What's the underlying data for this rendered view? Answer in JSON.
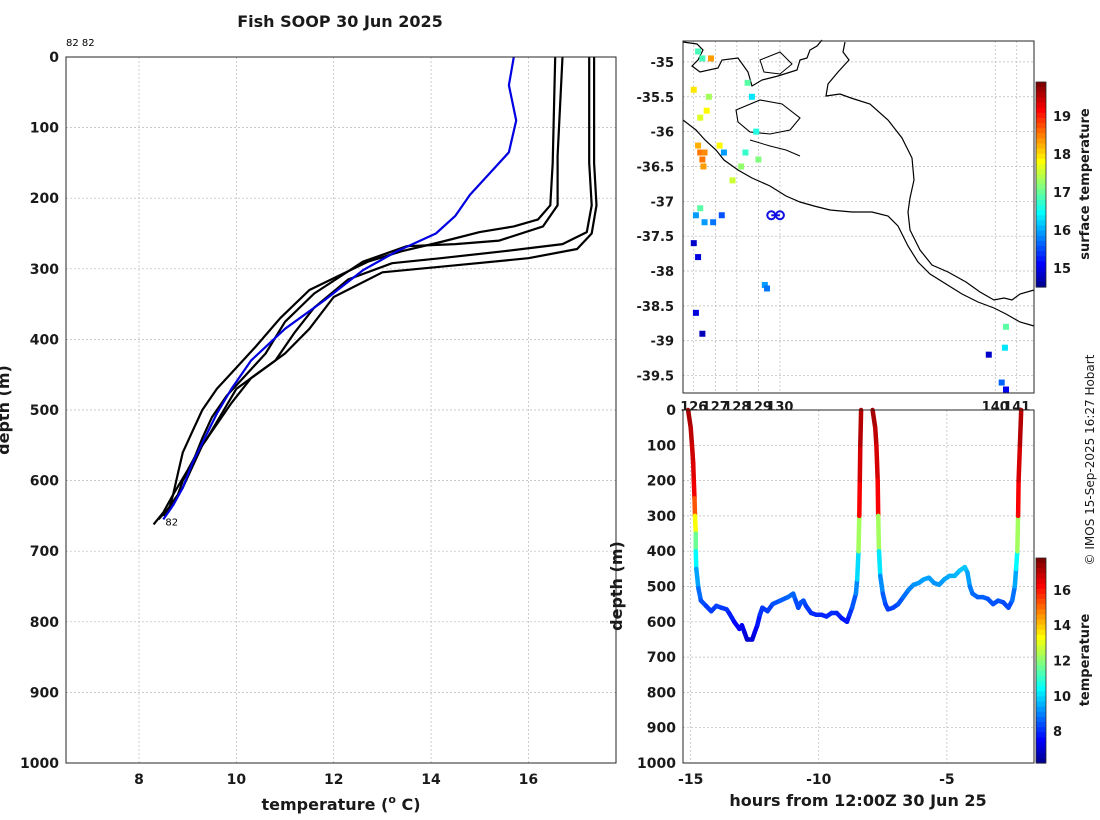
{
  "title": "Fish SOOP 30 Jun 2025",
  "copyright": "© IMOS 15-Sep-2025 16:27 Hobart",
  "chart_data": [
    {
      "type": "line",
      "name": "profile",
      "xlabel": "temperature (",
      "xlabel_sup": "o",
      "xlabel_end": " C)",
      "ylabel": "depth (m)",
      "xlim": [
        6.5,
        17.8
      ],
      "ylim": [
        0,
        1000
      ],
      "xticks": [
        8,
        10,
        12,
        14,
        16
      ],
      "yticks": [
        0,
        100,
        200,
        300,
        400,
        500,
        600,
        700,
        800,
        900,
        1000
      ],
      "top_labels": "82 82",
      "bottom_label": "82",
      "series": [
        {
          "name": "profile-1",
          "color": "#000000",
          "points": [
            [
              17.35,
              0
            ],
            [
              17.35,
              150
            ],
            [
              17.4,
              210
            ],
            [
              17.3,
              250
            ],
            [
              17.0,
              272
            ],
            [
              16.0,
              285
            ],
            [
              14.5,
              295
            ],
            [
              13.0,
              305
            ],
            [
              12.0,
              340
            ],
            [
              11.5,
              385
            ],
            [
              11.0,
              420
            ],
            [
              10.4,
              450
            ],
            [
              10.0,
              470
            ],
            [
              9.7,
              505
            ],
            [
              9.4,
              540
            ],
            [
              9.2,
              560
            ],
            [
              9.0,
              585
            ],
            [
              8.7,
              620
            ],
            [
              8.5,
              645
            ],
            [
              8.3,
              662
            ]
          ]
        },
        {
          "name": "profile-2",
          "color": "#000000",
          "points": [
            [
              17.25,
              0
            ],
            [
              17.25,
              150
            ],
            [
              17.3,
              210
            ],
            [
              17.2,
              248
            ],
            [
              16.7,
              265
            ],
            [
              15.5,
              275
            ],
            [
              14.2,
              285
            ],
            [
              13.2,
              292
            ],
            [
              12.3,
              315
            ],
            [
              11.6,
              355
            ],
            [
              11.2,
              390
            ],
            [
              10.8,
              430
            ],
            [
              10.3,
              455
            ],
            [
              9.9,
              490
            ],
            [
              9.6,
              520
            ],
            [
              9.3,
              550
            ],
            [
              9.1,
              580
            ],
            [
              8.9,
              610
            ],
            [
              8.6,
              640
            ],
            [
              8.4,
              655
            ]
          ]
        },
        {
          "name": "profile-3",
          "color": "#000000",
          "points": [
            [
              16.7,
              0
            ],
            [
              16.6,
              140
            ],
            [
              16.6,
              210
            ],
            [
              16.3,
              240
            ],
            [
              15.4,
              260
            ],
            [
              14.5,
              265
            ],
            [
              13.5,
              268
            ],
            [
              12.6,
              290
            ],
            [
              11.6,
              335
            ],
            [
              11.0,
              375
            ],
            [
              10.6,
              420
            ],
            [
              10.2,
              450
            ],
            [
              9.8,
              480
            ],
            [
              9.5,
              510
            ],
            [
              9.3,
              540
            ],
            [
              9.1,
              575
            ],
            [
              8.9,
              600
            ],
            [
              8.8,
              620
            ],
            [
              8.6,
              640
            ],
            [
              8.5,
              650
            ]
          ]
        },
        {
          "name": "profile-4",
          "color": "#000000",
          "points": [
            [
              16.55,
              0
            ],
            [
              16.5,
              150
            ],
            [
              16.45,
              210
            ],
            [
              16.2,
              230
            ],
            [
              15.7,
              240
            ],
            [
              15.0,
              248
            ],
            [
              14.2,
              262
            ],
            [
              13.4,
              275
            ],
            [
              12.7,
              290
            ],
            [
              11.5,
              330
            ],
            [
              10.9,
              370
            ],
            [
              10.4,
              410
            ],
            [
              10.0,
              440
            ],
            [
              9.6,
              470
            ],
            [
              9.3,
              500
            ],
            [
              9.1,
              530
            ],
            [
              8.9,
              560
            ],
            [
              8.8,
              590
            ],
            [
              8.7,
              620
            ],
            [
              8.6,
              645
            ]
          ]
        },
        {
          "name": "profile-5",
          "color": "#0000e0",
          "points": [
            [
              15.7,
              0
            ],
            [
              15.6,
              40
            ],
            [
              15.75,
              90
            ],
            [
              15.6,
              135
            ],
            [
              15.2,
              165
            ],
            [
              14.8,
              195
            ],
            [
              14.5,
              225
            ],
            [
              14.1,
              250
            ],
            [
              13.3,
              275
            ],
            [
              12.6,
              302
            ],
            [
              11.8,
              345
            ],
            [
              11.0,
              385
            ],
            [
              10.3,
              430
            ],
            [
              9.9,
              470
            ],
            [
              9.6,
              505
            ],
            [
              9.35,
              540
            ],
            [
              9.1,
              575
            ],
            [
              8.9,
              610
            ],
            [
              8.7,
              635
            ],
            [
              8.5,
              655
            ]
          ]
        }
      ]
    },
    {
      "type": "scatter",
      "name": "map",
      "xlim": [
        125.5,
        141.8
      ],
      "ylim": [
        -39.75,
        -34.7
      ],
      "xticks": [
        126,
        127,
        128,
        129,
        130,
        140,
        141
      ],
      "xtick_labels": [
        "126",
        "127",
        "128",
        "129",
        "130",
        "140",
        "141"
      ],
      "yticks": [
        -35,
        -35.5,
        -36,
        -36.5,
        -37,
        -37.5,
        -38,
        -38.5,
        -39,
        -39.5
      ],
      "colorbar": {
        "label": "surface temperature",
        "min": 14.5,
        "max": 19.9,
        "ticks": [
          15,
          16,
          17,
          18,
          19
        ]
      },
      "track": [
        [
          129.6,
          -37.2
        ],
        [
          130.0,
          -37.2
        ]
      ],
      "sst_points": [
        [
          126.3,
          -36.3,
          18.6
        ],
        [
          126.4,
          -36.4,
          18.6
        ],
        [
          126.5,
          -36.3,
          18.5
        ],
        [
          126.45,
          -36.5,
          18.4
        ],
        [
          126.2,
          -36.2,
          18.3
        ],
        [
          126.6,
          -35.7,
          17.9
        ],
        [
          126.3,
          -35.8,
          17.7
        ],
        [
          126.0,
          -35.4,
          18.0
        ],
        [
          126.7,
          -35.5,
          17.4
        ],
        [
          126.2,
          -34.85,
          16.9
        ],
        [
          126.4,
          -34.95,
          16.9
        ],
        [
          127.2,
          -36.2,
          17.9
        ],
        [
          127.8,
          -36.7,
          17.6
        ],
        [
          128.2,
          -36.5,
          17.3
        ],
        [
          128.4,
          -36.3,
          16.8
        ],
        [
          128.5,
          -35.3,
          17.0
        ],
        [
          128.7,
          -35.5,
          16.4
        ],
        [
          128.9,
          -36.0,
          16.7
        ],
        [
          129.0,
          -36.4,
          17.2
        ],
        [
          126.3,
          -37.1,
          17.0
        ],
        [
          126.1,
          -37.2,
          16.0
        ],
        [
          126.5,
          -37.3,
          16.0
        ],
        [
          126.9,
          -37.3,
          15.8
        ],
        [
          127.3,
          -37.2,
          15.6
        ],
        [
          126.0,
          -37.6,
          14.9
        ],
        [
          126.2,
          -37.8,
          15.0
        ],
        [
          129.3,
          -38.2,
          16.0
        ],
        [
          129.4,
          -38.25,
          15.8
        ],
        [
          140.5,
          -38.8,
          17.0
        ],
        [
          140.45,
          -39.1,
          16.4
        ],
        [
          140.3,
          -39.6,
          15.7
        ],
        [
          140.5,
          -39.7,
          15.1
        ],
        [
          126.1,
          -38.6,
          15.0
        ],
        [
          126.4,
          -38.9,
          14.8
        ],
        [
          139.7,
          -39.2,
          14.9
        ],
        [
          127.4,
          -36.3,
          16.0
        ],
        [
          126.8,
          -34.95,
          18.4
        ]
      ]
    },
    {
      "type": "line",
      "name": "section",
      "xlabel": "hours from 12:00Z 30 Jun 25",
      "ylabel": "depth (m)",
      "xlim": [
        -15.3,
        -1.6
      ],
      "ylim": [
        0,
        1000
      ],
      "xticks": [
        -15,
        -10,
        -5
      ],
      "yticks": [
        0,
        100,
        200,
        300,
        400,
        500,
        600,
        700,
        800,
        900,
        1000
      ],
      "colorbar": {
        "label": "temperature",
        "min": 6.2,
        "max": 17.8,
        "ticks": [
          8,
          10,
          12,
          14,
          16
        ]
      },
      "tracks": [
        [
          [
            -15.1,
            0
          ],
          [
            -15.0,
            50
          ],
          [
            -14.95,
            100
          ],
          [
            -14.9,
            150
          ],
          [
            -14.88,
            200
          ],
          [
            -14.85,
            250
          ],
          [
            -14.83,
            300
          ],
          [
            -14.8,
            350
          ],
          [
            -14.8,
            400
          ],
          [
            -14.78,
            450
          ],
          [
            -14.7,
            505
          ],
          [
            -14.6,
            540
          ],
          [
            -14.4,
            555
          ],
          [
            -14.2,
            570
          ],
          [
            -14.0,
            555
          ],
          [
            -13.8,
            560
          ],
          [
            -13.6,
            565
          ],
          [
            -13.5,
            575
          ],
          [
            -13.3,
            600
          ],
          [
            -13.1,
            620
          ],
          [
            -13.0,
            610
          ],
          [
            -12.9,
            630
          ],
          [
            -12.8,
            650
          ],
          [
            -12.6,
            650
          ],
          [
            -12.5,
            630
          ],
          [
            -12.4,
            610
          ],
          [
            -12.3,
            580
          ],
          [
            -12.2,
            560
          ],
          [
            -12.0,
            570
          ],
          [
            -11.8,
            550
          ],
          [
            -11.5,
            540
          ],
          [
            -11.2,
            530
          ],
          [
            -11.0,
            520
          ],
          [
            -10.9,
            540
          ],
          [
            -10.8,
            560
          ],
          [
            -10.7,
            545
          ],
          [
            -10.6,
            540
          ],
          [
            -10.5,
            555
          ],
          [
            -10.3,
            575
          ],
          [
            -10.1,
            580
          ],
          [
            -9.9,
            580
          ],
          [
            -9.7,
            585
          ],
          [
            -9.5,
            575
          ],
          [
            -9.3,
            575
          ],
          [
            -9.1,
            590
          ],
          [
            -8.9,
            600
          ],
          [
            -8.8,
            580
          ],
          [
            -8.7,
            560
          ],
          [
            -8.55,
            520
          ],
          [
            -8.5,
            480
          ],
          [
            -8.45,
            400
          ],
          [
            -8.42,
            300
          ],
          [
            -8.4,
            200
          ],
          [
            -8.38,
            100
          ],
          [
            -8.35,
            0
          ]
        ],
        [
          [
            -7.9,
            0
          ],
          [
            -7.8,
            50
          ],
          [
            -7.75,
            100
          ],
          [
            -7.7,
            200
          ],
          [
            -7.68,
            300
          ],
          [
            -7.65,
            400
          ],
          [
            -7.6,
            470
          ],
          [
            -7.5,
            520
          ],
          [
            -7.4,
            550
          ],
          [
            -7.3,
            565
          ],
          [
            -7.1,
            560
          ],
          [
            -6.9,
            550
          ],
          [
            -6.7,
            530
          ],
          [
            -6.5,
            510
          ],
          [
            -6.3,
            495
          ],
          [
            -6.1,
            490
          ],
          [
            -5.9,
            480
          ],
          [
            -5.7,
            475
          ],
          [
            -5.5,
            490
          ],
          [
            -5.3,
            495
          ],
          [
            -5.1,
            480
          ],
          [
            -4.9,
            470
          ],
          [
            -4.7,
            470
          ],
          [
            -4.5,
            455
          ],
          [
            -4.3,
            445
          ],
          [
            -4.2,
            460
          ],
          [
            -4.1,
            500
          ],
          [
            -4.0,
            520
          ],
          [
            -3.8,
            530
          ],
          [
            -3.6,
            530
          ],
          [
            -3.4,
            535
          ],
          [
            -3.2,
            550
          ],
          [
            -3.0,
            540
          ],
          [
            -2.8,
            545
          ],
          [
            -2.6,
            560
          ],
          [
            -2.45,
            540
          ],
          [
            -2.35,
            500
          ],
          [
            -2.3,
            450
          ],
          [
            -2.25,
            400
          ],
          [
            -2.22,
            300
          ],
          [
            -2.2,
            200
          ],
          [
            -2.15,
            100
          ],
          [
            -2.1,
            0
          ]
        ]
      ]
    }
  ]
}
